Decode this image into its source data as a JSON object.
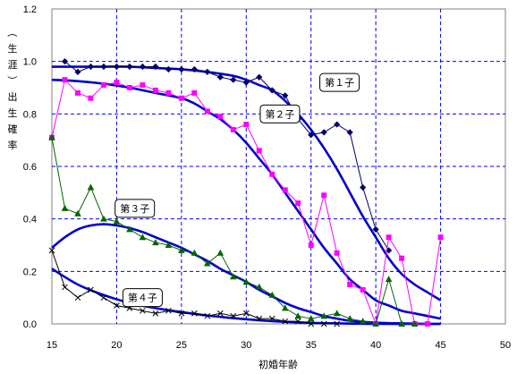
{
  "chart_data": {
    "type": "line",
    "ylabel": "（生涯）出生確率",
    "xlabel": "初婚年齢",
    "xlim": [
      15,
      50
    ],
    "ylim": [
      0,
      1.2
    ],
    "xticks": [
      "15",
      "20",
      "25",
      "30",
      "35",
      "40",
      "45",
      "50"
    ],
    "yticks": [
      "0.0",
      "0.2",
      "0.4",
      "0.6",
      "0.8",
      "1.0",
      "1.2"
    ],
    "grid": true,
    "series": [
      {
        "name": "第１子",
        "kind": "observed",
        "marker": "diamond",
        "color": "#000066",
        "x": [
          16,
          17,
          18,
          19,
          20,
          21,
          22,
          23,
          24,
          25,
          26,
          27,
          28,
          29,
          30,
          31,
          32,
          33,
          34,
          35,
          36,
          37,
          38,
          39,
          40,
          41
        ],
        "y": [
          1.0,
          0.96,
          0.98,
          0.98,
          0.98,
          0.98,
          0.98,
          0.98,
          0.97,
          0.97,
          0.97,
          0.96,
          0.94,
          0.93,
          0.92,
          0.94,
          0.89,
          0.87,
          0.78,
          0.72,
          0.73,
          0.76,
          0.73,
          0.52,
          0.36,
          0.28
        ]
      },
      {
        "name": "第２子",
        "kind": "observed",
        "marker": "square",
        "color": "#ff00ff",
        "x": [
          15,
          16,
          17,
          18,
          19,
          20,
          21,
          22,
          23,
          24,
          25,
          26,
          27,
          28,
          29,
          30,
          31,
          32,
          33,
          34,
          35,
          36,
          37,
          38,
          39,
          40,
          41,
          42,
          43,
          44,
          45
        ],
        "y": [
          0.71,
          0.93,
          0.88,
          0.86,
          0.91,
          0.92,
          0.9,
          0.91,
          0.89,
          0.88,
          0.86,
          0.88,
          0.81,
          0.79,
          0.74,
          0.76,
          0.66,
          0.57,
          0.51,
          0.46,
          0.3,
          0.49,
          0.27,
          0.15,
          0.13,
          0.0,
          0.33,
          0.25,
          0.0,
          0.0,
          0.33
        ]
      },
      {
        "name": "第３子",
        "kind": "observed",
        "marker": "triangle",
        "color": "#006600",
        "x": [
          15,
          16,
          17,
          18,
          19,
          20,
          21,
          22,
          23,
          24,
          25,
          26,
          27,
          28,
          29,
          30,
          31,
          32,
          33,
          34,
          35,
          36,
          37,
          38,
          39,
          40,
          41,
          42,
          43
        ],
        "y": [
          0.71,
          0.44,
          0.42,
          0.52,
          0.4,
          0.39,
          0.36,
          0.33,
          0.31,
          0.3,
          0.28,
          0.27,
          0.23,
          0.27,
          0.18,
          0.16,
          0.14,
          0.11,
          0.06,
          0.03,
          0.02,
          0.03,
          0.04,
          0.02,
          0.01,
          0.0,
          0.17,
          0.0,
          0.0
        ]
      },
      {
        "name": "第４子",
        "kind": "observed",
        "marker": "x",
        "color": "#000000",
        "x": [
          15,
          16,
          17,
          18,
          19,
          20,
          21,
          22,
          23,
          24,
          25,
          26,
          27,
          28,
          29,
          30,
          31,
          32,
          33,
          34,
          35,
          36,
          37
        ],
        "y": [
          0.28,
          0.14,
          0.1,
          0.13,
          0.1,
          0.07,
          0.06,
          0.05,
          0.04,
          0.05,
          0.04,
          0.04,
          0.03,
          0.04,
          0.03,
          0.04,
          0.02,
          0.02,
          0.01,
          0.01,
          0.0,
          0.0,
          0.0
        ]
      },
      {
        "name": "第１子",
        "kind": "fitted",
        "color": "#0000cc",
        "x": [
          15,
          17,
          19,
          21,
          23,
          25,
          27,
          29,
          30,
          31,
          32,
          33,
          34,
          35,
          36,
          37,
          38,
          39,
          40,
          41,
          42,
          43,
          44,
          45
        ],
        "y": [
          0.98,
          0.98,
          0.98,
          0.98,
          0.975,
          0.97,
          0.96,
          0.945,
          0.93,
          0.91,
          0.89,
          0.85,
          0.8,
          0.74,
          0.67,
          0.59,
          0.5,
          0.41,
          0.33,
          0.25,
          0.19,
          0.15,
          0.12,
          0.09
        ]
      },
      {
        "name": "第２子",
        "kind": "fitted",
        "color": "#0000cc",
        "x": [
          15,
          17,
          19,
          21,
          23,
          25,
          26,
          27,
          28,
          29,
          30,
          31,
          32,
          33,
          34,
          35,
          36,
          37,
          38,
          39,
          40,
          41,
          42,
          43,
          44,
          45
        ],
        "y": [
          0.93,
          0.925,
          0.915,
          0.9,
          0.88,
          0.86,
          0.84,
          0.81,
          0.78,
          0.74,
          0.69,
          0.63,
          0.57,
          0.5,
          0.43,
          0.36,
          0.29,
          0.23,
          0.17,
          0.13,
          0.09,
          0.07,
          0.05,
          0.04,
          0.03,
          0.02
        ]
      },
      {
        "name": "第３子",
        "kind": "fitted",
        "color": "#0000cc",
        "x": [
          15,
          16,
          17,
          18,
          19,
          20,
          21,
          22,
          23,
          24,
          25,
          26,
          27,
          28,
          29,
          30,
          31,
          32,
          33,
          34,
          35,
          36,
          37,
          38,
          39,
          40,
          41,
          42,
          43,
          44,
          45
        ],
        "y": [
          0.29,
          0.33,
          0.36,
          0.375,
          0.38,
          0.375,
          0.365,
          0.35,
          0.33,
          0.31,
          0.29,
          0.265,
          0.24,
          0.21,
          0.185,
          0.16,
          0.13,
          0.105,
          0.08,
          0.06,
          0.045,
          0.03,
          0.02,
          0.012,
          0.008,
          0.005,
          0.003,
          0.002,
          0.001,
          0.0,
          0.0
        ]
      },
      {
        "name": "第４子",
        "kind": "fitted",
        "color": "#0000cc",
        "x": [
          15,
          17,
          19,
          21,
          23,
          25,
          27,
          29,
          31,
          33,
          35,
          37,
          40,
          45
        ],
        "y": [
          0.21,
          0.15,
          0.11,
          0.08,
          0.06,
          0.045,
          0.032,
          0.022,
          0.014,
          0.008,
          0.004,
          0.002,
          0.0,
          0.0
        ]
      }
    ],
    "annotations": [
      {
        "text": "第１子",
        "x": 37.2,
        "y": 0.92
      },
      {
        "text": "第２子",
        "x": 32.6,
        "y": 0.8
      },
      {
        "text": "第３子",
        "x": 21.4,
        "y": 0.44
      },
      {
        "text": "第４子",
        "x": 22.0,
        "y": 0.1
      }
    ]
  }
}
